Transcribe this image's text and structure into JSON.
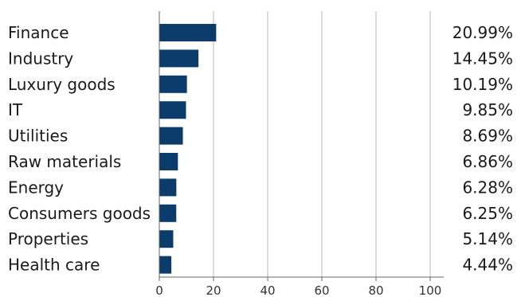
{
  "chart_data": {
    "type": "bar",
    "orientation": "horizontal",
    "categories": [
      "Finance",
      "Industry",
      "Luxury goods",
      "IT",
      "Utilities",
      "Raw materials",
      "Energy",
      "Consumers goods",
      "Properties",
      "Health care"
    ],
    "values": [
      20.99,
      14.45,
      10.19,
      9.85,
      8.69,
      6.86,
      6.28,
      6.25,
      5.14,
      4.44
    ],
    "value_labels": [
      "20.99%",
      "14.45%",
      "10.19%",
      "9.85%",
      "8.69%",
      "6.86%",
      "6.28%",
      "6.25%",
      "5.14%",
      "4.44%"
    ],
    "x_ticks": [
      "0",
      "20",
      "40",
      "60",
      "80",
      "100"
    ],
    "xlim": [
      0,
      105
    ],
    "grid": true,
    "bar_color": "#0b3c6b",
    "title": "",
    "xlabel": "",
    "ylabel": ""
  }
}
